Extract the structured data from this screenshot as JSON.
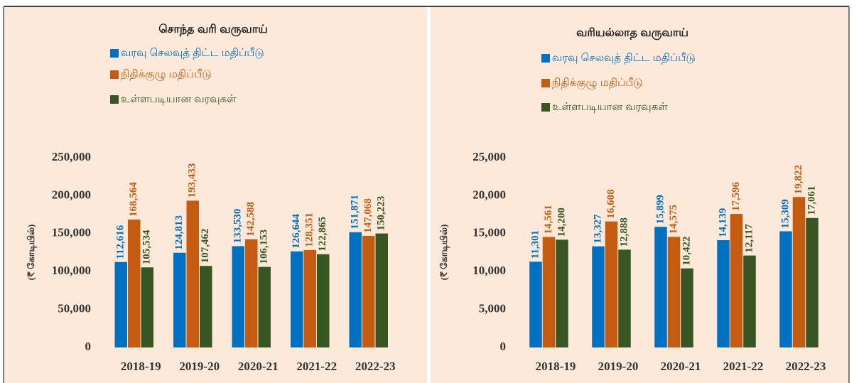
{
  "chart_data": [
    {
      "type": "bar",
      "title": "சொந்த வரி வருவாய்",
      "y_label": "(₹ கோடியில்)",
      "categories": [
        "2018-19",
        "2019-20",
        "2020-21",
        "2021-22",
        "2022-23"
      ],
      "series": [
        {
          "name": "வரவு செலவுத் திட்ட மதிப்பீடு",
          "color": "#0070c0",
          "values": [
            112616,
            124813,
            133530,
            126644,
            151871
          ],
          "value_labels": [
            "112,616",
            "124,813",
            "133,530",
            "126,644",
            "151,871"
          ]
        },
        {
          "name": "நிதிக்குழு மதிப்பீடு",
          "color": "#c55a11",
          "values": [
            168564,
            193433,
            142588,
            128351,
            147068
          ],
          "value_labels": [
            "168,564",
            "193,433",
            "142,588",
            "128,351",
            "147,068"
          ]
        },
        {
          "name": "உள்ளபடியான வரவுகள்",
          "color": "#375623",
          "values": [
            105534,
            107462,
            106153,
            122865,
            150223
          ],
          "value_labels": [
            "105,534",
            "107,462",
            "106,153",
            "122,865",
            "150,223"
          ]
        }
      ],
      "ylim": [
        0,
        250000
      ],
      "yticks": [
        0,
        {
          "value": 50000,
          "label": "50,000"
        },
        {
          "value": 100000,
          "label": "100,000"
        },
        {
          "value": 150000,
          "label": "150,000"
        },
        {
          "value": 200000,
          "label": "200,000"
        },
        {
          "value": 250000,
          "label": "250,000"
        }
      ]
    },
    {
      "type": "bar",
      "title": "வரியல்லாத வருவாய்",
      "y_label": "(₹ கோடியில்)",
      "categories": [
        "2018-19",
        "2019-20",
        "2020-21",
        "2021-22",
        "2022-23"
      ],
      "series": [
        {
          "name": "வரவு செலவுத் திட்ட மதிப்பீடு",
          "color": "#0070c0",
          "values": [
            11301,
            13327,
            15899,
            14139,
            15309
          ],
          "value_labels": [
            "11,301",
            "13,327",
            "15,899",
            "14,139",
            "15,309"
          ]
        },
        {
          "name": "நிதிக்குழு மதிப்பீடு",
          "color": "#c55a11",
          "values": [
            14561,
            16608,
            14575,
            17596,
            19822
          ],
          "value_labels": [
            "14,561",
            "16,608",
            "14,575",
            "17,596",
            "19,822"
          ]
        },
        {
          "name": "உள்ளபடியான வரவுகள்",
          "color": "#375623",
          "values": [
            14200,
            12888,
            10422,
            12117,
            17061
          ],
          "value_labels": [
            "14,200",
            "12,888",
            "10,422",
            "12,117",
            "17,061"
          ]
        }
      ],
      "ylim": [
        0,
        25000
      ],
      "yticks": [
        0,
        {
          "value": 5000,
          "label": "5,000"
        },
        {
          "value": 10000,
          "label": "10,000"
        },
        {
          "value": 15000,
          "label": "15,000"
        },
        {
          "value": 20000,
          "label": "20,000"
        },
        {
          "value": 25000,
          "label": "25,000"
        }
      ]
    }
  ]
}
